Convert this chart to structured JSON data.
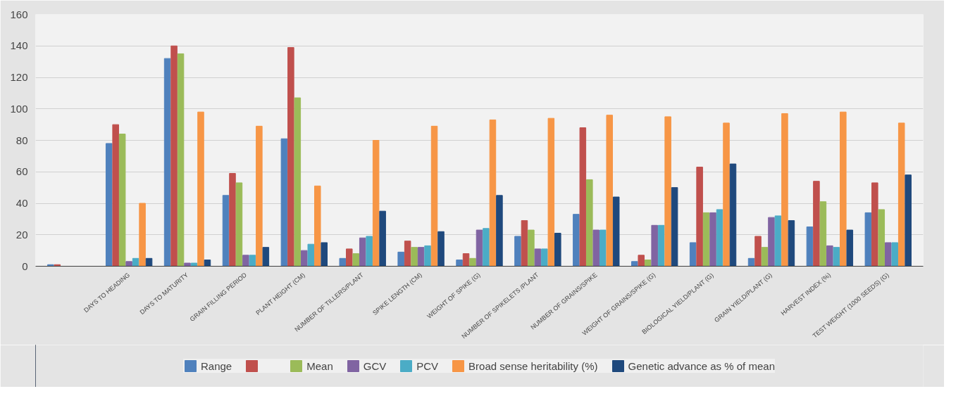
{
  "chart_data": {
    "type": "bar",
    "categories": [
      null,
      "DAYS TO HEADING",
      "DAYS TO MATURITY",
      "GRAIN FILLING PERIOD",
      "PLANT HEIGHT (CM)",
      "NUMBER OF TILLERS/PLANT",
      "SPIKE LENGTH (CM)",
      "WEIGHT OF SPIKE (G)",
      "NUMBER OF SPIKELETS /PLANT",
      "NUMBER OF GRAINS/SPIKE",
      "WEIGHT OF GRAINS/SPIKE (G)",
      "BIOLOGICAL YIELD/PLANT (G)",
      "GRAIN YIELD/PLANT (G)",
      "HARVEST INDEX (%)",
      "TEST WEIGHT (1000 SEEDS) (G)"
    ],
    "series": [
      {
        "name": "Range",
        "color": "#4f81bd",
        "values": [
          1,
          78,
          132,
          45,
          81,
          5,
          9,
          4,
          19,
          33,
          3,
          15,
          5,
          25,
          34
        ]
      },
      {
        "color": "#c0504d",
        "values": [
          1,
          90,
          140,
          59,
          139,
          11,
          16,
          8,
          29,
          88,
          7,
          63,
          19,
          54,
          53
        ]
      },
      {
        "name": "Mean",
        "color": "#9bbb59",
        "values": [
          null,
          84,
          135,
          53,
          107,
          8,
          12,
          5,
          23,
          55,
          4,
          34,
          12,
          41,
          36
        ]
      },
      {
        "name": "GCV",
        "color": "#8064a2",
        "values": [
          null,
          3,
          2,
          7,
          10,
          18,
          12,
          23,
          11,
          23,
          26,
          34,
          31,
          13,
          15
        ]
      },
      {
        "name": "PCV",
        "color": "#4bacc6",
        "values": [
          null,
          5,
          2,
          7,
          14,
          19,
          13,
          24,
          11,
          23,
          26,
          36,
          32,
          12,
          15
        ]
      },
      {
        "name": "Broad sense heritability (%)",
        "color": "#f79646",
        "values": [
          null,
          40,
          98,
          89,
          51,
          80,
          89,
          93,
          94,
          96,
          95,
          91,
          97,
          98,
          91
        ]
      },
      {
        "name": "Genetic advance as % of mean",
        "color": "#1f497d",
        "values": [
          null,
          5,
          4,
          12,
          15,
          35,
          22,
          45,
          21,
          44,
          50,
          65,
          29,
          23,
          58
        ]
      }
    ],
    "ylim": [
      0,
      160
    ],
    "yticks": [
      0,
      20,
      40,
      60,
      80,
      100,
      120,
      140,
      160
    ],
    "grid": "y",
    "legend": "bottom"
  }
}
